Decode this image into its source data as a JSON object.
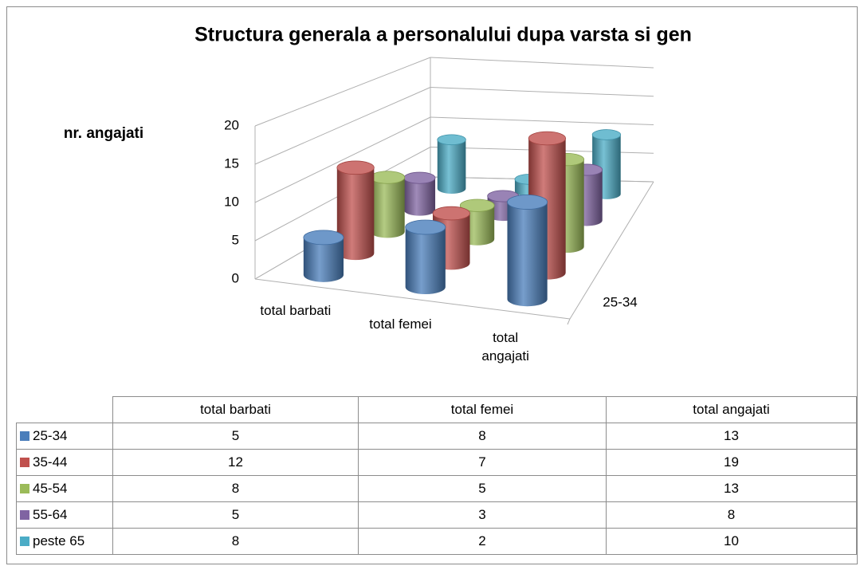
{
  "chart_data": {
    "type": "bar3d_cylinder",
    "title": "Structura generala a personalului dupa varsta si gen",
    "y_label": "nr. angajati",
    "categories": [
      "total barbati",
      "total femei",
      "total angajati"
    ],
    "series": [
      {
        "name": "25-34",
        "color": "#4a7ebb",
        "values": [
          5,
          8,
          13
        ]
      },
      {
        "name": "35-44",
        "color": "#c0504d",
        "values": [
          12,
          7,
          19
        ]
      },
      {
        "name": "45-54",
        "color": "#9bbb59",
        "values": [
          8,
          5,
          13
        ]
      },
      {
        "name": "55-64",
        "color": "#8064a2",
        "values": [
          5,
          3,
          8
        ]
      },
      {
        "name": "peste 65",
        "color": "#4bacc6",
        "values": [
          8,
          2,
          10
        ]
      }
    ],
    "ylim": [
      0,
      20
    ],
    "yticks": [
      0,
      5,
      10,
      15,
      20
    ],
    "grid": true,
    "data_table": true
  }
}
